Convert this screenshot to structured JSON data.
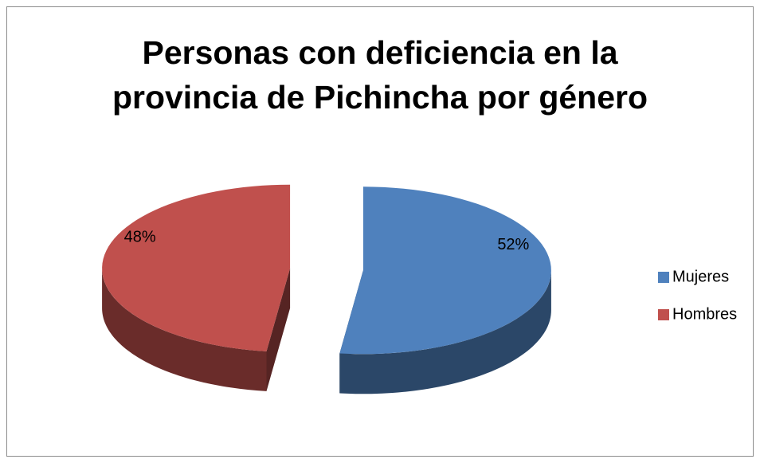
{
  "chart_data": {
    "type": "pie",
    "title": "Personas con deficiencia en la provincia de Pichincha por género",
    "categories": [
      "Mujeres",
      "Hombres"
    ],
    "values": [
      52,
      48
    ],
    "value_labels": [
      "52%",
      "48%"
    ],
    "colors": [
      "#4f81bd",
      "#c0504d"
    ],
    "legend": "right"
  }
}
